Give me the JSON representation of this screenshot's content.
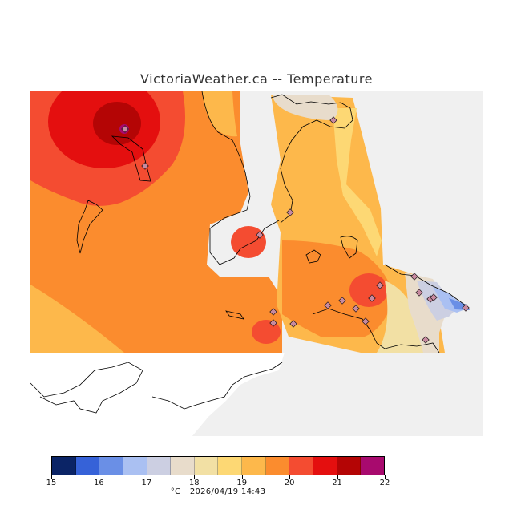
{
  "title": "VictoriaWeather.ca -- Temperature",
  "legend": {
    "unit": "°C",
    "ticks": [
      "15",
      "16",
      "17",
      "18",
      "19",
      "20",
      "21",
      "22"
    ],
    "colors": [
      "#0b2466",
      "#3662d8",
      "#6a8fe6",
      "#aac0f2",
      "#cccfe2",
      "#e8dccb",
      "#f2e0a4",
      "#fdd874",
      "#fdb84b",
      "#fb8c2e",
      "#f44c31",
      "#e40f0f",
      "#b40505",
      "#a80a6e"
    ],
    "range_c": [
      15,
      22
    ]
  },
  "timestamp": "2026/04/19 14:43",
  "colors": {
    "land_no_data": "#ffffff",
    "water_background": "#f0f0f0",
    "coastline": "#000000",
    "station_marker": "#c78aa0"
  },
  "stations_count": 20
}
